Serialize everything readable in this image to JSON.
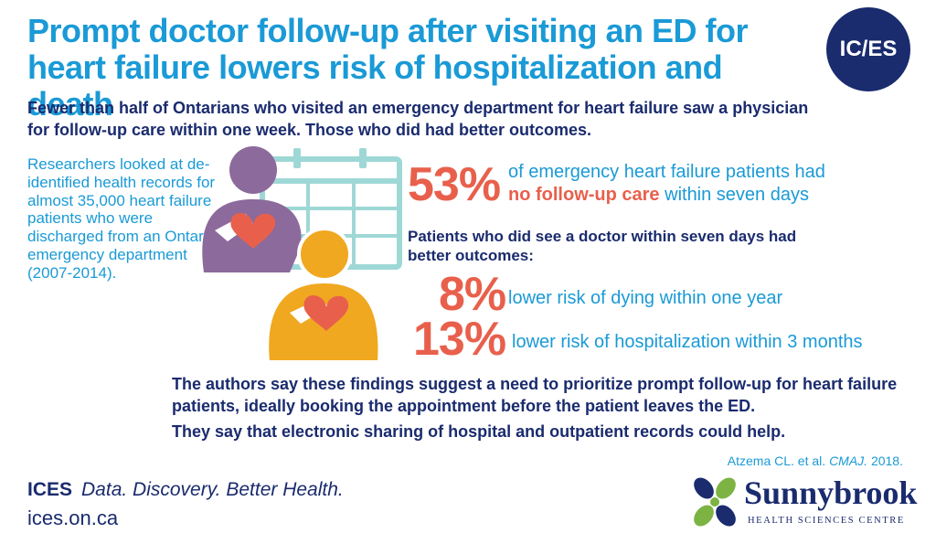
{
  "header": {
    "title": "Prompt doctor follow-up after visiting an ED for heart failure lowers risk of hospitalization and death",
    "logo_text": "IC/ES"
  },
  "intro": "Fewer than half of Ontarians who visited an emergency department for heart failure saw a physician for follow-up care within one week. Those who did had better outcomes.",
  "researchers_text": "Researchers looked at de-identified health records for almost 35,000 heart failure patients who were discharged from an Ontario emergency department (2007-2014).",
  "stat_main": {
    "value": "53%",
    "text_before": "of emergency heart failure patients had",
    "highlight": "no follow-up care",
    "text_after": " within seven days"
  },
  "subhead": "Patients who did see a doctor within seven days had better outcomes:",
  "stats": [
    {
      "value": "8%",
      "text": "lower risk of dying within one year"
    },
    {
      "value": "13%",
      "text": "lower risk of hospitalization within 3 months"
    }
  ],
  "authors_text": "The authors say these findings suggest a need to prioritize prompt follow-up for heart failure patients, ideally booking the appointment before the patient leaves the ED.",
  "sharing_text": "They say that electronic sharing of hospital and outpatient records could help.",
  "citation": {
    "authors": "Atzema CL. et al. ",
    "journal": "CMAJ.",
    "year": " 2018."
  },
  "footer": {
    "brand": "ICES",
    "tagline": "Data. Discovery. Better Health.",
    "url": "ices.on.ca",
    "partner_name": "Sunnybrook",
    "partner_sub": "HEALTH SCIENCES CENTRE"
  },
  "colors": {
    "title_blue": "#1a9ad6",
    "navy": "#1a2b6e",
    "coral": "#e8604c",
    "purple": "#8c6a9c",
    "gold": "#f0a820",
    "calendar_teal": "#9ed8d6",
    "leaf_green": "#7cb342"
  },
  "icons": [
    "calendar-icon",
    "patient-purple-icon",
    "patient-gold-icon",
    "broken-heart-icon",
    "sunnybrook-leaf-icon"
  ]
}
